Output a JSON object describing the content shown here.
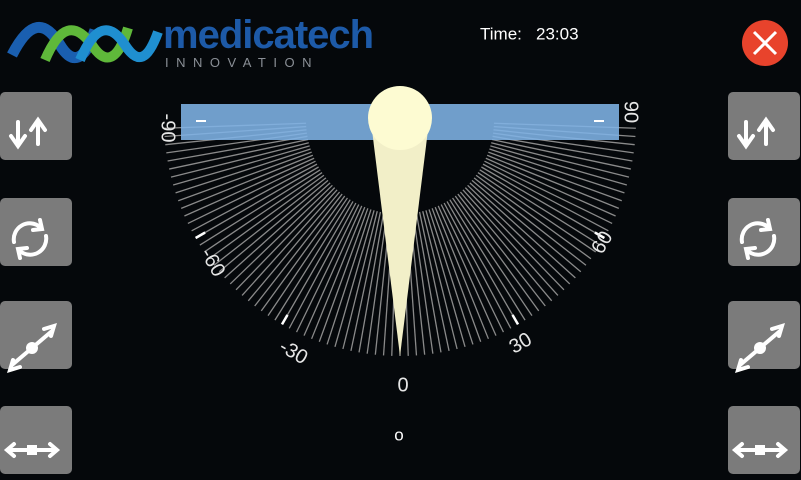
{
  "header": {
    "brand": "medicatech",
    "tagline": "INNOVATION",
    "time_label": "Time:",
    "time_value": "23:03"
  },
  "dial": {
    "labels": [
      "-90",
      "-60",
      "-30",
      "0",
      "30",
      "60",
      "90"
    ],
    "unit": "o"
  }
}
